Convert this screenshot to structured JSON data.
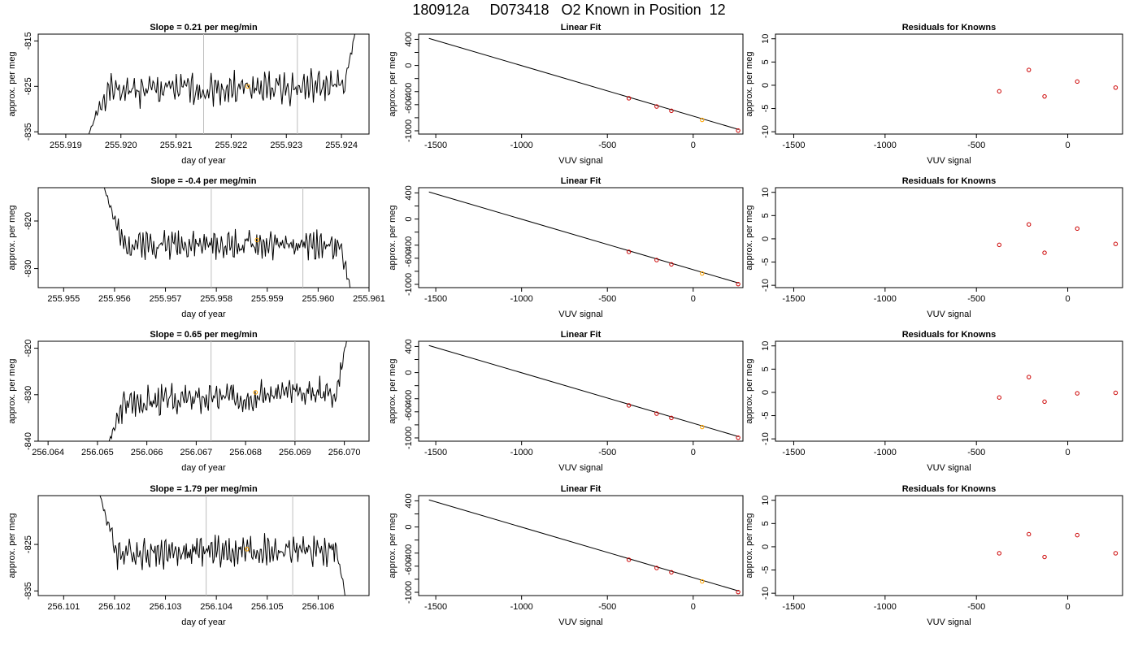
{
  "page": {
    "title": "180912a     D073418   O2 Known in Position  12"
  },
  "colors": {
    "trace": "#000000",
    "marker_orange": "#ffa500",
    "marker_red": "#cc0000",
    "vline": "#bebebe",
    "axis": "#000000"
  },
  "chart_data": [
    {
      "type": "line",
      "panel": "row1-time",
      "title": "Slope =  0.21  per meg/min",
      "xlabel": "day of year",
      "ylabel": "approx. per meg",
      "xlim": [
        255.9185,
        255.9245
      ],
      "ylim": [
        -835.5,
        -813.5
      ],
      "xticks": [
        255.919,
        255.92,
        255.921,
        255.922,
        255.923,
        255.924
      ],
      "xtick_labels": [
        "255.919",
        "255.920",
        "255.921",
        "255.922",
        "255.923",
        "255.924"
      ],
      "yticks": [
        -835,
        -825,
        -815
      ],
      "ytick_labels": [
        "-835",
        "-825",
        "-815"
      ],
      "vlines": [
        255.9215,
        255.9232
      ],
      "trace": {
        "x0": 255.9194,
        "x1": 255.92425,
        "base": -825.5,
        "amp": 3.0,
        "trend": 0.6,
        "start_y": -836,
        "end_y": -813,
        "seed": 1
      },
      "marker": {
        "x": 255.9223,
        "y": -825.0
      }
    },
    {
      "type": "scatter",
      "panel": "row1-fit",
      "title": "Linear Fit",
      "xlabel": "VUV signal",
      "ylabel": "approx. per meg",
      "xlim": [
        -1600,
        290
      ],
      "ylim": [
        -1050,
        480
      ],
      "xticks": [
        -1500,
        -1000,
        -500,
        0
      ],
      "xtick_labels": [
        "-1500",
        "-1000",
        "-500",
        "0"
      ],
      "yticks": [
        -1000,
        -800,
        -600,
        -400,
        -200,
        0,
        200,
        400
      ],
      "ytick_labels": [
        "-1000",
        "",
        "-600",
        "-400",
        "",
        "0",
        "",
        "400"
      ],
      "line": {
        "x": [
          -1540,
          265
        ],
        "y": [
          415,
          -980
        ]
      },
      "points": [
        {
          "x": -375,
          "y": -502,
          "color": "red"
        },
        {
          "x": -213,
          "y": -628,
          "color": "red"
        },
        {
          "x": -127,
          "y": -694,
          "color": "red"
        },
        {
          "x": 52,
          "y": -833,
          "color": "orange"
        },
        {
          "x": 262,
          "y": -996,
          "color": "red"
        }
      ]
    },
    {
      "type": "scatter",
      "panel": "row1-resid",
      "title": "Residuals for Knowns",
      "xlabel": "VUV signal",
      "ylabel": "approx. per meg",
      "xlim": [
        -1600,
        300
      ],
      "ylim": [
        -10.5,
        11
      ],
      "xticks": [
        -1500,
        -1000,
        -500,
        0
      ],
      "xtick_labels": [
        "-1500",
        "-1000",
        "-500",
        "0"
      ],
      "yticks": [
        -10,
        -5,
        0,
        5,
        10
      ],
      "ytick_labels": [
        "-10",
        "-5",
        "0",
        "5",
        "10"
      ],
      "points": [
        {
          "x": -375,
          "y": -1.3
        },
        {
          "x": -213,
          "y": 3.3
        },
        {
          "x": -127,
          "y": -2.4
        },
        {
          "x": 52,
          "y": 0.8
        },
        {
          "x": 262,
          "y": -0.5
        }
      ]
    },
    {
      "type": "line",
      "panel": "row2-time",
      "title": "Slope =  -0.4  per meg/min",
      "xlabel": "day of year",
      "ylabel": "approx. per meg",
      "xlim": [
        255.9545,
        255.961
      ],
      "ylim": [
        -834,
        -813
      ],
      "xticks": [
        255.955,
        255.956,
        255.957,
        255.958,
        255.959,
        255.96,
        255.961
      ],
      "xtick_labels": [
        "255.955",
        "255.956",
        "255.957",
        "255.958",
        "255.959",
        "255.960",
        "255.961"
      ],
      "yticks": [
        -830,
        -820
      ],
      "ytick_labels": [
        "-830",
        "-820"
      ],
      "vlines": [
        255.9579,
        255.9597
      ],
      "trace": {
        "x0": 255.9558,
        "x1": 255.96065,
        "base": -825.0,
        "amp": 2.6,
        "trend": -0.4,
        "start_y": -813,
        "end_y": -835,
        "seed": 2
      },
      "marker": {
        "x": 255.9588,
        "y": -824.0
      }
    },
    {
      "type": "scatter",
      "panel": "row2-fit",
      "title": "Linear Fit",
      "xlabel": "VUV signal",
      "ylabel": "approx. per meg",
      "xlim": [
        -1600,
        290
      ],
      "ylim": [
        -1050,
        480
      ],
      "xticks": [
        -1500,
        -1000,
        -500,
        0
      ],
      "xtick_labels": [
        "-1500",
        "-1000",
        "-500",
        "0"
      ],
      "yticks": [
        -1000,
        -800,
        -600,
        -400,
        -200,
        0,
        200,
        400
      ],
      "ytick_labels": [
        "-1000",
        "",
        "-600",
        "-400",
        "",
        "0",
        "",
        "400"
      ],
      "line": {
        "x": [
          -1540,
          265
        ],
        "y": [
          415,
          -980
        ]
      },
      "points": [
        {
          "x": -375,
          "y": -502,
          "color": "red"
        },
        {
          "x": -213,
          "y": -628,
          "color": "red"
        },
        {
          "x": -127,
          "y": -694,
          "color": "red"
        },
        {
          "x": 52,
          "y": -833,
          "color": "orange"
        },
        {
          "x": 262,
          "y": -996,
          "color": "red"
        }
      ]
    },
    {
      "type": "scatter",
      "panel": "row2-resid",
      "title": "Residuals for Knowns",
      "xlabel": "VUV signal",
      "ylabel": "approx. per meg",
      "xlim": [
        -1600,
        300
      ],
      "ylim": [
        -10.5,
        11
      ],
      "xticks": [
        -1500,
        -1000,
        -500,
        0
      ],
      "xtick_labels": [
        "-1500",
        "-1000",
        "-500",
        "0"
      ],
      "yticks": [
        -10,
        -5,
        0,
        5,
        10
      ],
      "ytick_labels": [
        "-10",
        "-5",
        "0",
        "5",
        "10"
      ],
      "points": [
        {
          "x": -375,
          "y": -1.3
        },
        {
          "x": -213,
          "y": 3.1
        },
        {
          "x": -127,
          "y": -3.0
        },
        {
          "x": 52,
          "y": 2.2
        },
        {
          "x": 262,
          "y": -1.1
        }
      ]
    },
    {
      "type": "line",
      "panel": "row3-time",
      "title": "Slope =  0.65  per meg/min",
      "xlabel": "day of year",
      "ylabel": "approx. per meg",
      "xlim": [
        256.0638,
        256.0705
      ],
      "ylim": [
        -840,
        -818.5
      ],
      "xticks": [
        256.064,
        256.065,
        256.066,
        256.067,
        256.068,
        256.069,
        256.07
      ],
      "xtick_labels": [
        "256.064",
        "256.065",
        "256.066",
        "256.067",
        "256.068",
        "256.069",
        "256.070"
      ],
      "yticks": [
        -840,
        -830,
        -820
      ],
      "ytick_labels": [
        "-840",
        "-830",
        "-820"
      ],
      "vlines": [
        256.0673,
        256.069
      ],
      "trace": {
        "x0": 256.0652,
        "x1": 256.07005,
        "base": -830.5,
        "amp": 2.8,
        "trend": 1.5,
        "start_y": -841,
        "end_y": -818,
        "seed": 3
      },
      "marker": {
        "x": 256.0682,
        "y": -829.5
      }
    },
    {
      "type": "scatter",
      "panel": "row3-fit",
      "title": "Linear Fit",
      "xlabel": "VUV signal",
      "ylabel": "approx. per meg",
      "xlim": [
        -1600,
        290
      ],
      "ylim": [
        -1050,
        480
      ],
      "xticks": [
        -1500,
        -1000,
        -500,
        0
      ],
      "xtick_labels": [
        "-1500",
        "-1000",
        "-500",
        "0"
      ],
      "yticks": [
        -1000,
        -800,
        -600,
        -400,
        -200,
        0,
        200,
        400
      ],
      "ytick_labels": [
        "-1000",
        "",
        "-600",
        "-400",
        "",
        "0",
        "",
        "400"
      ],
      "line": {
        "x": [
          -1540,
          265
        ],
        "y": [
          415,
          -980
        ]
      },
      "points": [
        {
          "x": -375,
          "y": -502,
          "color": "red"
        },
        {
          "x": -213,
          "y": -628,
          "color": "red"
        },
        {
          "x": -127,
          "y": -694,
          "color": "red"
        },
        {
          "x": 52,
          "y": -833,
          "color": "orange"
        },
        {
          "x": 262,
          "y": -996,
          "color": "red"
        }
      ]
    },
    {
      "type": "scatter",
      "panel": "row3-resid",
      "title": "Residuals for Knowns",
      "xlabel": "VUV signal",
      "ylabel": "approx. per meg",
      "xlim": [
        -1600,
        300
      ],
      "ylim": [
        -10.5,
        11
      ],
      "xticks": [
        -1500,
        -1000,
        -500,
        0
      ],
      "xtick_labels": [
        "-1500",
        "-1000",
        "-500",
        "0"
      ],
      "yticks": [
        -10,
        -5,
        0,
        5,
        10
      ],
      "ytick_labels": [
        "-10",
        "-5",
        "0",
        "5",
        "10"
      ],
      "points": [
        {
          "x": -375,
          "y": -1.1
        },
        {
          "x": -213,
          "y": 3.3
        },
        {
          "x": -127,
          "y": -2.0
        },
        {
          "x": 52,
          "y": -0.2
        },
        {
          "x": 262,
          "y": -0.1
        }
      ]
    },
    {
      "type": "line",
      "panel": "row4-time",
      "title": "Slope =  1.79  per meg/min",
      "xlabel": "day of year",
      "ylabel": "approx. per meg",
      "xlim": [
        256.1005,
        256.107
      ],
      "ylim": [
        -836,
        -814.5
      ],
      "xticks": [
        256.101,
        256.102,
        256.103,
        256.104,
        256.105,
        256.106
      ],
      "xtick_labels": [
        "256.101",
        "256.102",
        "256.103",
        "256.104",
        "256.105",
        "256.106"
      ],
      "yticks": [
        -835,
        -825
      ],
      "ytick_labels": [
        "-835",
        "-825"
      ],
      "vlines": [
        256.1038,
        256.1055
      ],
      "trace": {
        "x0": 256.1017,
        "x1": 256.10655,
        "base": -826.5,
        "amp": 2.8,
        "trend": 0.3,
        "start_y": -814,
        "end_y": -837,
        "seed": 4
      },
      "marker": {
        "x": 256.1046,
        "y": -826.0
      }
    },
    {
      "type": "scatter",
      "panel": "row4-fit",
      "title": "Linear Fit",
      "xlabel": "VUV signal",
      "ylabel": "approx. per meg",
      "xlim": [
        -1600,
        290
      ],
      "ylim": [
        -1050,
        480
      ],
      "xticks": [
        -1500,
        -1000,
        -500,
        0
      ],
      "xtick_labels": [
        "-1500",
        "-1000",
        "-500",
        "0"
      ],
      "yticks": [
        -1000,
        -800,
        -600,
        -400,
        -200,
        0,
        200,
        400
      ],
      "ytick_labels": [
        "-1000",
        "",
        "-600",
        "-400",
        "",
        "0",
        "",
        "400"
      ],
      "line": {
        "x": [
          -1540,
          265
        ],
        "y": [
          415,
          -980
        ]
      },
      "points": [
        {
          "x": -375,
          "y": -502,
          "color": "red"
        },
        {
          "x": -213,
          "y": -628,
          "color": "red"
        },
        {
          "x": -127,
          "y": -694,
          "color": "red"
        },
        {
          "x": 52,
          "y": -833,
          "color": "orange"
        },
        {
          "x": 262,
          "y": -996,
          "color": "red"
        }
      ]
    },
    {
      "type": "scatter",
      "panel": "row4-resid",
      "title": "Residuals for Knowns",
      "xlabel": "VUV signal",
      "ylabel": "approx. per meg",
      "xlim": [
        -1600,
        300
      ],
      "ylim": [
        -10.5,
        11
      ],
      "xticks": [
        -1500,
        -1000,
        -500,
        0
      ],
      "xtick_labels": [
        "-1500",
        "-1000",
        "-500",
        "0"
      ],
      "yticks": [
        -10,
        -5,
        0,
        5,
        10
      ],
      "ytick_labels": [
        "-10",
        "-5",
        "0",
        "5",
        "10"
      ],
      "points": [
        {
          "x": -375,
          "y": -1.4
        },
        {
          "x": -213,
          "y": 2.7
        },
        {
          "x": -127,
          "y": -2.2
        },
        {
          "x": 52,
          "y": 2.5
        },
        {
          "x": 262,
          "y": -1.4
        }
      ]
    }
  ]
}
